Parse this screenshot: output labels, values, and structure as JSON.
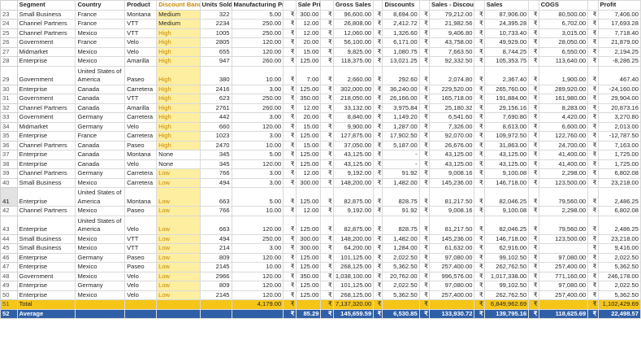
{
  "headers": [
    "",
    "Segment",
    "Country",
    "Product",
    "Discount Band",
    "Units Sold",
    "Manufacturing Price",
    "",
    "Sale Price",
    "",
    "Gross Sales",
    "",
    "Discounts",
    "",
    "Sales - Discounts",
    "",
    "Sales",
    "",
    "COGS",
    "",
    "Profit"
  ],
  "rows": [
    {
      "rn": "23",
      "seg": "Small Business",
      "cty": "France",
      "prod": "Montana",
      "band": "Medium",
      "units": "322",
      "mp": "5.00",
      "sp": "300.00",
      "gs": "96,600.00",
      "disc": "8,694.00",
      "sd": "79,212.00",
      "sales": "87,906.00",
      "cogs": "80,500.00",
      "profit": "7,406.00",
      "cls": "med"
    },
    {
      "rn": "24",
      "seg": "Channel Partners",
      "cty": "France",
      "prod": "VTT",
      "band": "Medium",
      "units": "2234",
      "mp": "250.00",
      "sp": "12.00",
      "gs": "26,808.00",
      "disc": "2,412.72",
      "sd": "21,982.56",
      "sales": "24,395.28",
      "cogs": "6,702.00",
      "profit": "17,693.28",
      "cls": "med"
    },
    {
      "rn": "25",
      "seg": "Channel Partners",
      "cty": "Mexico",
      "prod": "VTT",
      "band": "High",
      "units": "1005",
      "mp": "250.00",
      "sp": "12.00",
      "gs": "12,060.00",
      "disc": "1,326.60",
      "sd": "9,406.80",
      "sales": "10,733.40",
      "cogs": "3,015.00",
      "profit": "7,718.40",
      "cls": "high"
    },
    {
      "rn": "26",
      "seg": "Government",
      "cty": "France",
      "prod": "Velo",
      "band": "High",
      "units": "2805",
      "mp": "120.00",
      "sp": "20.00",
      "gs": "56,100.00",
      "disc": "6,171.00",
      "sd": "43,758.00",
      "sales": "49,929.00",
      "cogs": "28,050.00",
      "profit": "21,879.00",
      "cls": "high"
    },
    {
      "rn": "27",
      "seg": "Midmarket",
      "cty": "Mexico",
      "prod": "Velo",
      "band": "High",
      "units": "655",
      "mp": "120.00",
      "sp": "15.00",
      "gs": "9,825.00",
      "disc": "1,080.75",
      "sd": "7,663.50",
      "sales": "8,744.25",
      "cogs": "6,550.00",
      "profit": "2,194.25",
      "cls": "high"
    },
    {
      "rn": "28",
      "seg": "Enterprise",
      "cty": "Mexico",
      "prod": "Amarilla",
      "band": "High",
      "units": "947",
      "mp": "260.00",
      "sp": "125.00",
      "gs": "118,375.00",
      "disc": "13,021.25",
      "sd": "92,332.50",
      "sales": "105,353.75",
      "cogs": "113,640.00",
      "profit": "-8,286.25",
      "cls": "high"
    },
    {
      "rn": "29",
      "seg": "Government",
      "cty": "United States of America",
      "prod": "Paseo",
      "band": "High",
      "units": "380",
      "mp": "10.00",
      "sp": "7.00",
      "gs": "2,660.00",
      "disc": "292.60",
      "sd": "2,074.80",
      "sales": "2,367.40",
      "cogs": "1,900.00",
      "profit": "467.40",
      "cls": "high",
      "tall": true
    },
    {
      "rn": "30",
      "seg": "Enterprise",
      "cty": "Canada",
      "prod": "Carretera",
      "band": "High",
      "units": "2416",
      "mp": "3.00",
      "sp": "125.00",
      "gs": "302,000.00",
      "disc": "36,240.00",
      "sd": "229,520.00",
      "sales": "265,760.00",
      "cogs": "289,920.00",
      "profit": "-24,160.00",
      "cls": "high"
    },
    {
      "rn": "31",
      "seg": "Government",
      "cty": "Canada",
      "prod": "VTT",
      "band": "High",
      "units": "623",
      "mp": "250.00",
      "sp": "350.00",
      "gs": "218,050.00",
      "disc": "26,166.00",
      "sd": "165,718.00",
      "sales": "191,884.00",
      "cogs": "161,980.00",
      "profit": "29,904.00",
      "cls": "high"
    },
    {
      "rn": "32",
      "seg": "Channel Partners",
      "cty": "Canada",
      "prod": "Amarilla",
      "band": "High",
      "units": "2761",
      "mp": "260.00",
      "sp": "12.00",
      "gs": "33,132.00",
      "disc": "3,975.84",
      "sd": "25,180.32",
      "sales": "29,156.16",
      "cogs": "8,283.00",
      "profit": "20,873.16",
      "cls": "high"
    },
    {
      "rn": "33",
      "seg": "Government",
      "cty": "Germany",
      "prod": "Carretera",
      "band": "High",
      "units": "442",
      "mp": "3.00",
      "sp": "20.00",
      "gs": "8,840.00",
      "disc": "1,149.20",
      "sd": "6,541.60",
      "sales": "7,690.80",
      "cogs": "4,420.00",
      "profit": "3,270.80",
      "cls": "high"
    },
    {
      "rn": "34",
      "seg": "Midmarket",
      "cty": "Germany",
      "prod": "Velo",
      "band": "High",
      "units": "660",
      "mp": "120.00",
      "sp": "15.00",
      "gs": "9,900.00",
      "disc": "1,287.00",
      "sd": "7,326.00",
      "sales": "8,613.00",
      "cogs": "6,600.00",
      "profit": "2,013.00",
      "cls": "high"
    },
    {
      "rn": "35",
      "seg": "Enterprise",
      "cty": "France",
      "prod": "Carretera",
      "band": "High",
      "units": "1023",
      "mp": "3.00",
      "sp": "125.00",
      "gs": "127,875.00",
      "disc": "17,902.50",
      "sd": "92,070.00",
      "sales": "109,972.50",
      "cogs": "122,760.00",
      "profit": "-12,787.50",
      "cls": "high"
    },
    {
      "rn": "36",
      "seg": "Channel Partners",
      "cty": "Canada",
      "prod": "Paseo",
      "band": "High",
      "units": "2470",
      "mp": "10.00",
      "sp": "15.00",
      "gs": "37,050.00",
      "disc": "5,187.00",
      "sd": "26,676.00",
      "sales": "31,863.00",
      "cogs": "24,700.00",
      "profit": "7,163.00",
      "cls": "high"
    },
    {
      "rn": "37",
      "seg": "Enterprise",
      "cty": "Canada",
      "prod": "Montana",
      "band": "None",
      "units": "345",
      "mp": "5.00",
      "sp": "125.00",
      "gs": "43,125.00",
      "disc": "-",
      "sd": "43,125.00",
      "sales": "43,125.00",
      "cogs": "41,400.00",
      "profit": "1,725.00",
      "cls": "none"
    },
    {
      "rn": "38",
      "seg": "Enterprise",
      "cty": "Canada",
      "prod": "Velo",
      "band": "None",
      "units": "345",
      "mp": "120.00",
      "sp": "125.00",
      "gs": "43,125.00",
      "disc": "-",
      "sd": "43,125.00",
      "sales": "43,125.00",
      "cogs": "41,400.00",
      "profit": "1,725.00",
      "cls": "none"
    },
    {
      "rn": "39",
      "seg": "Channel Partners",
      "cty": "Germany",
      "prod": "Carretera",
      "band": "Low",
      "units": "766",
      "mp": "3.00",
      "sp": "12.00",
      "gs": "9,192.00",
      "disc": "91.92",
      "sd": "9,008.16",
      "sales": "9,100.08",
      "cogs": "2,298.00",
      "profit": "6,802.08",
      "cls": "low"
    },
    {
      "rn": "40",
      "seg": "Small Business",
      "cty": "Mexico",
      "prod": "Carretera",
      "band": "Low",
      "units": "494",
      "mp": "3.00",
      "sp": "300.00",
      "gs": "148,200.00",
      "disc": "1,482.00",
      "sd": "145,236.00",
      "sales": "146,718.00",
      "cogs": "123,500.00",
      "profit": "23,218.00",
      "cls": "low"
    },
    {
      "rn": "41",
      "seg": "Enterprise",
      "cty": "United States of America",
      "prod": "Montana",
      "band": "Low",
      "units": "663",
      "mp": "5.00",
      "sp": "125.00",
      "gs": "82,875.00",
      "disc": "828.75",
      "sd": "81,217.50",
      "sales": "82,046.25",
      "cogs": "79,560.00",
      "profit": "2,486.25",
      "cls": "low",
      "tall": true,
      "sel": true
    },
    {
      "rn": "42",
      "seg": "Channel Partners",
      "cty": "Mexico",
      "prod": "Paseo",
      "band": "Low",
      "units": "766",
      "mp": "10.00",
      "sp": "12.00",
      "gs": "9,192.00",
      "disc": "91.92",
      "sd": "9,008.16",
      "sales": "9,100.08",
      "cogs": "2,298.00",
      "profit": "6,802.08",
      "cls": "low"
    },
    {
      "rn": "43",
      "seg": "Enterprise",
      "cty": "United States of America",
      "prod": "Velo",
      "band": "Low",
      "units": "663",
      "mp": "120.00",
      "sp": "125.00",
      "gs": "82,875.00",
      "disc": "828.75",
      "sd": "81,217.50",
      "sales": "82,046.25",
      "cogs": "79,560.00",
      "profit": "2,486.25",
      "cls": "low",
      "tall": true
    },
    {
      "rn": "44",
      "seg": "Small Business",
      "cty": "Mexico",
      "prod": "VTT",
      "band": "Low",
      "units": "494",
      "mp": "250.00",
      "sp": "300.00",
      "gs": "148,200.00",
      "disc": "1,482.00",
      "sd": "145,236.00",
      "sales": "146,718.00",
      "cogs": "123,500.00",
      "profit": "23,218.00",
      "cls": "low"
    },
    {
      "rn": "45",
      "seg": "Small Business",
      "cty": "Mexico",
      "prod": "VTT",
      "band": "Low",
      "units": "214",
      "mp": "3.00",
      "sp": "300.00",
      "gs": "64,200.00",
      "disc": "1,284.00",
      "sd": "61,632.00",
      "sales": "62,916.00",
      "cogs": "",
      "profit": "9,416.00",
      "cls": "low"
    },
    {
      "rn": "46",
      "seg": "Enterprise",
      "cty": "Germany",
      "prod": "Paseo",
      "band": "Low",
      "units": "809",
      "mp": "120.00",
      "sp": "125.00",
      "gs": "101,125.00",
      "disc": "2,022.50",
      "sd": "97,080.00",
      "sales": "99,102.50",
      "cogs": "97,080.00",
      "profit": "2,022.50",
      "cls": "low"
    },
    {
      "rn": "47",
      "seg": "Enterprise",
      "cty": "Mexico",
      "prod": "Paseo",
      "band": "Low",
      "units": "2145",
      "mp": "10.00",
      "sp": "125.00",
      "gs": "268,125.00",
      "disc": "5,362.50",
      "sd": "257,400.00",
      "sales": "262,762.50",
      "cogs": "257,400.00",
      "profit": "5,362.50",
      "cls": "low"
    },
    {
      "rn": "48",
      "seg": "Government",
      "cty": "Mexico",
      "prod": "Velo",
      "band": "Low",
      "units": "2966",
      "mp": "120.00",
      "sp": "350.00",
      "gs": "1,038,100.00",
      "disc": "20,762.00",
      "sd": "996,576.00",
      "sales": "1,017,338.00",
      "cogs": "771,160.00",
      "profit": "246,178.00",
      "cls": "low"
    },
    {
      "rn": "49",
      "seg": "Enterprise",
      "cty": "Germany",
      "prod": "Velo",
      "band": "Low",
      "units": "809",
      "mp": "120.00",
      "sp": "125.00",
      "gs": "101,125.00",
      "disc": "2,022.50",
      "sd": "97,080.00",
      "sales": "99,102.50",
      "cogs": "97,080.00",
      "profit": "2,022.50",
      "cls": "low"
    },
    {
      "rn": "50",
      "seg": "Enterprise",
      "cty": "Mexico",
      "prod": "Velo",
      "band": "Low",
      "units": "2145",
      "mp": "120.00",
      "sp": "125.00",
      "gs": "268,125.00",
      "disc": "5,362.50",
      "sd": "257,400.00",
      "sales": "262,762.50",
      "cogs": "257,400.00",
      "profit": "5,362.50",
      "cls": "low"
    }
  ],
  "total": {
    "rn": "51",
    "label": "Total",
    "units": "4,179.00",
    "gs": "7,137,320.00",
    "sales": "6,849,962.69",
    "profit": "1,102,429.69"
  },
  "average": {
    "rn": "52",
    "label": "Average",
    "sp": "85.29",
    "sp2": "131.00",
    "gs": "145,659.59",
    "disc": "6,530.85",
    "sd": "133,930.72",
    "sales": "139,795.16",
    "cogs": "118,625.69",
    "profit": "22,498.57"
  },
  "currency": "₹",
  "colors": {
    "discount_band_fill": "#fdeea0",
    "total_fill": "#f5c518",
    "average_fill": "#2f5fa7"
  }
}
